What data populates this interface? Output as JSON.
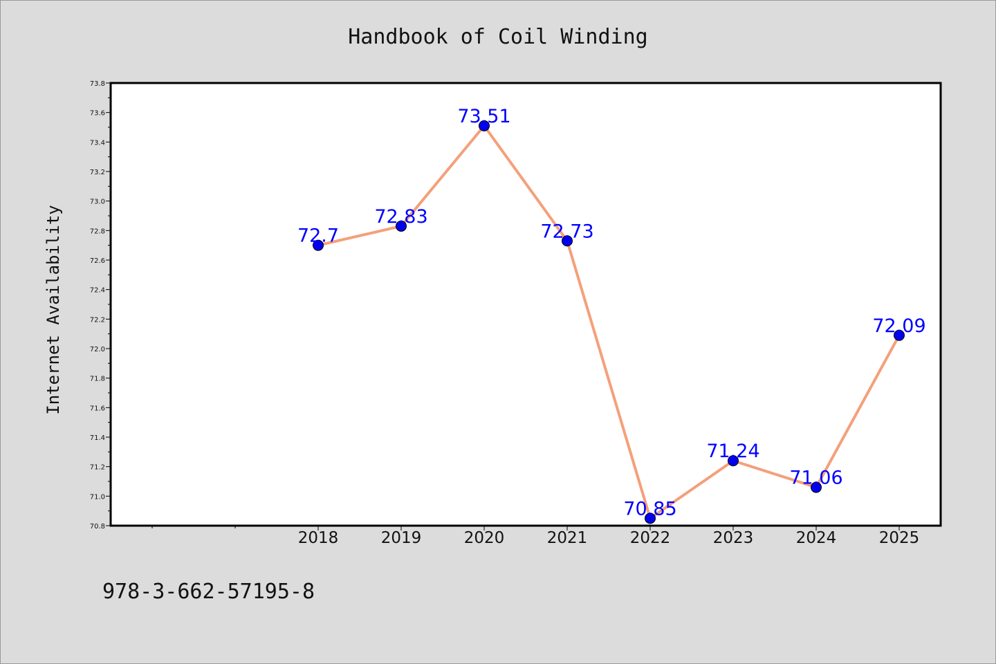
{
  "chart_data": {
    "type": "line",
    "title": "Handbook of Coil Winding",
    "xlabel": "",
    "ylabel": "Internet Availability",
    "categories": [
      "2018",
      "2019",
      "2020",
      "2021",
      "2022",
      "2023",
      "2024",
      "2025"
    ],
    "series": [
      {
        "values": [
          72.7,
          72.83,
          73.51,
          72.73,
          70.85,
          71.24,
          71.06,
          72.09
        ]
      }
    ],
    "data_labels": [
      "72.7",
      "72.83",
      "73.51",
      "72.73",
      "70.85",
      "71.24",
      "71.06",
      "72.09"
    ],
    "ylim": [
      70.8,
      73.8
    ],
    "yticks": [
      "70.8",
      "71.0",
      "71.2",
      "71.4",
      "71.6",
      "71.8",
      "72.0",
      "72.2",
      "72.4",
      "72.6",
      "72.8",
      "73.0",
      "73.2",
      "73.4",
      "73.6",
      "73.8"
    ],
    "grid": false,
    "legend": "none",
    "colors": {
      "line": "#f4a07a",
      "marker": "#0000ee",
      "label": "#0000ff"
    }
  },
  "footer": {
    "isbn": "978-3-662-57195-8"
  }
}
